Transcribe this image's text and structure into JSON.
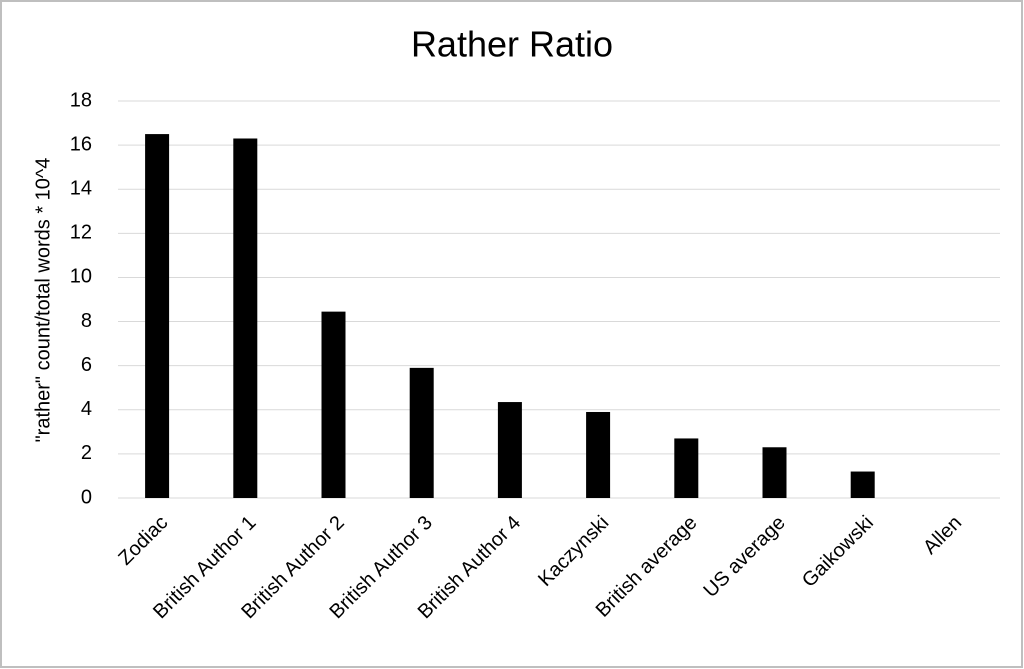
{
  "chart_data": {
    "type": "bar",
    "title": "Rather Ratio",
    "y_label": "\"rather\" count/total words * 10^4",
    "categories": [
      "Zodiac",
      "British Author 1",
      "British Author 2",
      "British Author 3",
      "British Author 4",
      "Kaczynski",
      "British average",
      "US average",
      "Gaikowski",
      "Allen"
    ],
    "values": [
      16.5,
      16.3,
      8.45,
      5.9,
      4.35,
      3.9,
      2.7,
      2.3,
      1.2,
      0
    ],
    "color": "#000000",
    "ylim": [
      0,
      18
    ],
    "yticks": [
      0,
      2,
      4,
      6,
      8,
      10,
      12,
      14,
      16,
      18
    ],
    "grid": true
  }
}
